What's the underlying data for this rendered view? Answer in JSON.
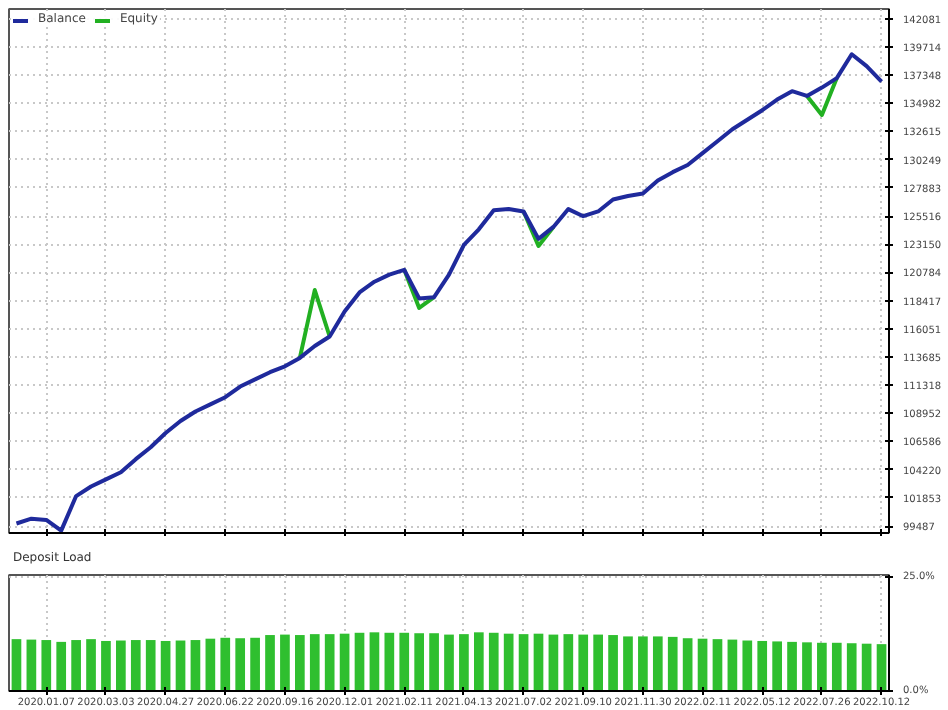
{
  "chart_data": [
    {
      "type": "line",
      "legend": "top left",
      "grid": true,
      "tick_labels": "y",
      "line_style": "solid",
      "categories": [
        null,
        null,
        "2020.01.07",
        null,
        null,
        null,
        "2020.03.03",
        null,
        null,
        null,
        "2020.04.27",
        null,
        null,
        null,
        "2020.06.22",
        null,
        null,
        null,
        "2020.09.16",
        null,
        null,
        null,
        "2020.12.01",
        null,
        null,
        null,
        "2021.02.11",
        null,
        null,
        null,
        "2021.04.13",
        null,
        null,
        null,
        "2021.07.02",
        null,
        null,
        null,
        "2021.09.10",
        null,
        null,
        null,
        "2021.11.30",
        null,
        null,
        null,
        "2022.02.11",
        null,
        null,
        null,
        "2022.05.12",
        null,
        null,
        null,
        "2022.07.26",
        null,
        null,
        null,
        "2022.10.12"
      ],
      "ylim": [
        98900,
        142900
      ],
      "yticks": [
        99487,
        101853,
        104220,
        106586,
        108952,
        111318,
        113685,
        116051,
        118417,
        120784,
        123150,
        125516,
        127883,
        130249,
        132615,
        134982,
        137348,
        139714,
        142081
      ],
      "series": [
        {
          "name": "Equity",
          "color": "#22b022",
          "values": [
            null,
            null,
            null,
            null,
            null,
            null,
            null,
            null,
            null,
            null,
            null,
            null,
            null,
            null,
            null,
            null,
            null,
            null,
            null,
            113600,
            119300,
            115400,
            null,
            null,
            null,
            null,
            121000,
            117800,
            118700,
            null,
            null,
            null,
            null,
            null,
            125900,
            123000,
            124600,
            null,
            null,
            null,
            null,
            null,
            null,
            null,
            null,
            null,
            null,
            null,
            null,
            null,
            null,
            null,
            null,
            135600,
            134000,
            137100,
            null,
            null,
            null
          ]
        },
        {
          "name": "Balance",
          "color": "#1f2a9c",
          "values": [
            99700,
            100100,
            100000,
            99100,
            102000,
            102800,
            103400,
            104000,
            105100,
            106100,
            107300,
            108300,
            109100,
            109700,
            110300,
            111200,
            111800,
            112400,
            112900,
            113600,
            114600,
            115400,
            117500,
            119100,
            120000,
            120600,
            121000,
            118600,
            118700,
            120600,
            123100,
            124400,
            126000,
            126100,
            125900,
            123600,
            124600,
            126100,
            125500,
            125900,
            126900,
            127200,
            127400,
            128500,
            129200,
            129800,
            130800,
            131800,
            132800,
            133600,
            134400,
            135300,
            136000,
            135600,
            136300,
            137100,
            139100,
            138100,
            136800
          ]
        }
      ]
    },
    {
      "type": "bar",
      "title": "Deposit Load",
      "grid": true,
      "color": "#2fbf2f",
      "categories": [
        null,
        null,
        "2020.01.07",
        null,
        null,
        null,
        "2020.03.03",
        null,
        null,
        null,
        "2020.04.27",
        null,
        null,
        null,
        "2020.06.22",
        null,
        null,
        null,
        "2020.09.16",
        null,
        null,
        null,
        "2020.12.01",
        null,
        null,
        null,
        "2021.02.11",
        null,
        null,
        null,
        "2021.04.13",
        null,
        null,
        null,
        "2021.07.02",
        null,
        null,
        null,
        "2021.09.10",
        null,
        null,
        null,
        "2021.11.30",
        null,
        null,
        null,
        "2022.02.11",
        null,
        null,
        null,
        "2022.05.12",
        null,
        null,
        null,
        "2022.07.26",
        null,
        null,
        null,
        "2022.10.12"
      ],
      "ylim": [
        0,
        25.5
      ],
      "yticks": [
        {
          "value": 0,
          "label": "0.0%"
        },
        {
          "value": 25,
          "label": "25.0%"
        }
      ],
      "values": [
        11.4,
        11.3,
        11.2,
        10.8,
        11.2,
        11.4,
        11.0,
        11.1,
        11.2,
        11.2,
        11.0,
        11.1,
        11.2,
        11.5,
        11.7,
        11.6,
        11.7,
        12.3,
        12.4,
        12.3,
        12.5,
        12.5,
        12.6,
        12.8,
        12.9,
        12.8,
        12.8,
        12.7,
        12.7,
        12.4,
        12.5,
        12.9,
        12.8,
        12.6,
        12.5,
        12.6,
        12.4,
        12.5,
        12.4,
        12.4,
        12.3,
        12.0,
        12.0,
        12.0,
        11.9,
        11.6,
        11.5,
        11.4,
        11.3,
        11.1,
        11.0,
        10.9,
        10.8,
        10.7,
        10.6,
        10.6,
        10.5,
        10.4,
        10.3
      ]
    }
  ]
}
